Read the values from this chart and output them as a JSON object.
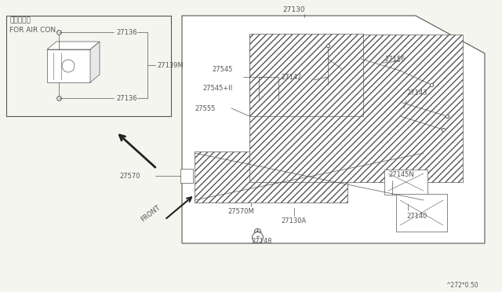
{
  "bg_color": "#f5f5f0",
  "line_color": "#555555",
  "text_color": "#555555",
  "fig_width": 6.4,
  "fig_height": 3.72,
  "watermark": "^272*0.50",
  "japanese_text": "エアコン用",
  "english_text": "FOR AIR CON"
}
